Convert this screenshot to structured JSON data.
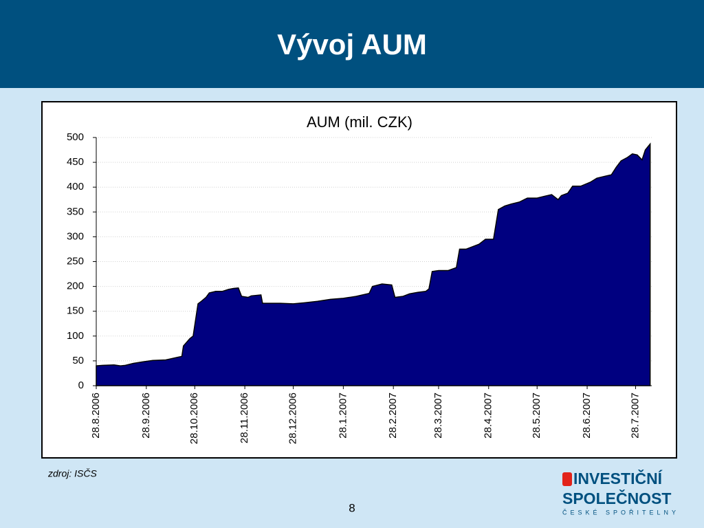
{
  "header": {
    "title": "Vývoj AUM"
  },
  "chart_data": {
    "type": "area",
    "title": "AUM (mil. CZK)",
    "color": "#000080",
    "grid": true,
    "x": [
      "28.8.2006",
      "1.9.2006",
      "8.9.2006",
      "12.9.2006",
      "15.9.2006",
      "20.9.2006",
      "26.9.2006",
      "2.10.2006",
      "10.10.2006",
      "13.10.2006",
      "17.10.2006",
      "20.10.2006",
      "21.10.2006",
      "25.10.2006",
      "27.10.2006",
      "30.10.2006",
      "1.11.2006",
      "4.11.2006",
      "6.11.2006",
      "10.11.2006",
      "14.11.2006",
      "18.11.2006",
      "21.11.2006",
      "24.11.2006",
      "26.11.2006",
      "30.11.2006",
      "2.12.2006",
      "8.12.2006",
      "9.12.2006",
      "20.12.2006",
      "28.12.2006",
      "4.1.2007",
      "12.1.2007",
      "20.1.2007",
      "28.1.2007",
      "5.2.2007",
      "13.2.2007",
      "15.2.2007",
      "21.2.2007",
      "27.2.2007",
      "1.3.2007",
      "6.3.2007",
      "10.3.2007",
      "15.3.2007",
      "20.3.2007",
      "22.3.2007",
      "24.3.2007",
      "28.3.2007",
      "3.4.2007",
      "8.4.2007",
      "10.4.2007",
      "14.4.2007",
      "18.4.2007",
      "22.4.2007",
      "26.4.2007",
      "1.5.2007",
      "4.5.2007",
      "8.5.2007",
      "12.5.2007",
      "17.5.2007",
      "22.5.2007",
      "28.5.2007",
      "2.6.2007",
      "6.6.2007",
      "10.6.2007",
      "12.6.2007",
      "16.6.2007",
      "19.6.2007",
      "24.6.2007",
      "30.6.2007",
      "4.7.2007",
      "9.7.2007",
      "13.7.2007",
      "16.7.2007",
      "19.7.2007",
      "23.7.2007",
      "26.7.2007",
      "29.7.2007",
      "1.8.2007",
      "3.8.2007",
      "6.8.2007"
    ],
    "values": [
      40,
      41,
      42,
      40,
      41,
      45,
      48,
      51,
      52,
      54,
      57,
      59,
      80,
      95,
      100,
      165,
      170,
      178,
      187,
      190,
      190,
      194,
      196,
      197,
      180,
      178,
      181,
      183,
      166,
      166,
      165,
      167,
      170,
      174,
      176,
      180,
      186,
      200,
      205,
      203,
      178,
      180,
      185,
      188,
      190,
      195,
      230,
      232,
      232,
      238,
      275,
      275,
      280,
      285,
      295,
      295,
      355,
      362,
      366,
      370,
      378,
      378,
      382,
      385,
      375,
      383,
      388,
      402,
      402,
      410,
      418,
      422,
      425,
      440,
      453,
      460,
      467,
      465,
      455,
      475,
      487
    ],
    "xlim": [
      "28.8.2006",
      "7.8.2007"
    ],
    "xticks": [
      "28.8.2006",
      "28.9.2006",
      "28.10.2006",
      "28.11.2006",
      "28.12.2006",
      "28.1.2007",
      "28.2.2007",
      "28.3.2007",
      "28.4.2007",
      "28.5.2007",
      "28.6.2007",
      "28.7.2007"
    ],
    "ylim": [
      0,
      500
    ],
    "yticks": [
      0,
      50,
      100,
      150,
      200,
      250,
      300,
      350,
      400,
      450,
      500
    ]
  },
  "source": "zdroj: ISČS",
  "page_number": "8",
  "logo": {
    "line1": "INVESTIČNÍ",
    "line2": "SPOLEČNOST",
    "line3": "ČESKÉ SPOŘITELNY"
  }
}
